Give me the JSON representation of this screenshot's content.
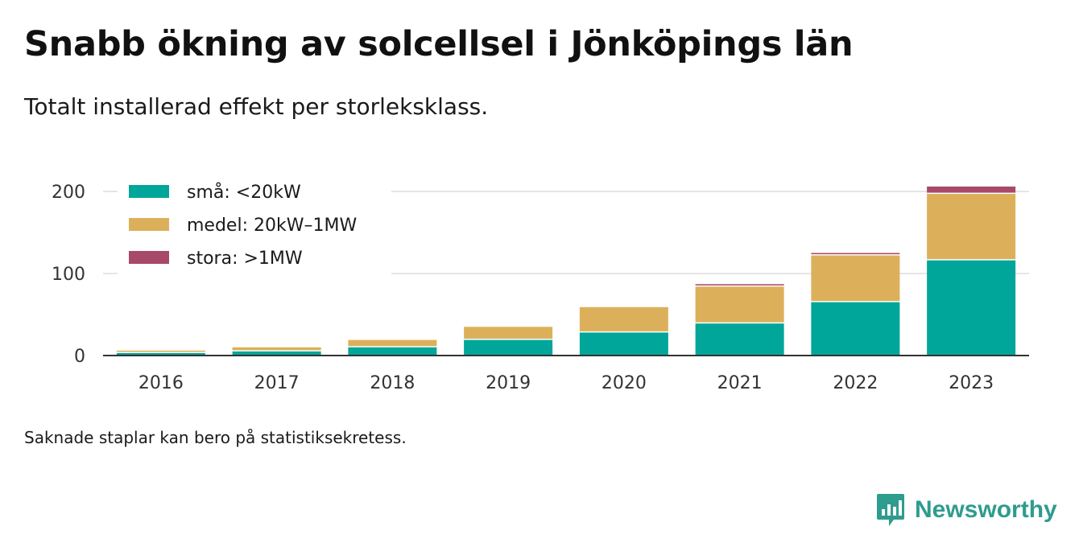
{
  "header": {
    "title": "Snabb ökning av solcellsel i Jönköpings län",
    "subtitle": "Totalt installerad effekt per storleksklass."
  },
  "footnote": "Saknade staplar kan bero på statistiksekretess.",
  "brand": {
    "name": "Newsworthy",
    "icon": "newsworthy-logo-icon",
    "color": "#2e9c8e"
  },
  "chart_data": {
    "type": "bar",
    "stacked": true,
    "categories": [
      "2016",
      "2017",
      "2018",
      "2019",
      "2020",
      "2021",
      "2022",
      "2023"
    ],
    "series": [
      {
        "name": "små: <20kW",
        "color": "#00a699",
        "values": [
          3,
          5,
          10,
          19,
          28,
          39,
          65,
          116
        ]
      },
      {
        "name": "medel: 20kW–1MW",
        "color": "#dcb05b",
        "values": [
          3,
          5,
          9,
          16,
          31,
          45,
          57,
          81
        ]
      },
      {
        "name": "stora: >1MW",
        "color": "#a84969",
        "values": [
          0,
          0,
          0,
          0,
          0,
          3,
          3,
          9
        ]
      }
    ],
    "ylim": [
      0,
      210
    ],
    "yticks": [
      0,
      100,
      200
    ],
    "grid": true,
    "legend_position": "top-left"
  }
}
